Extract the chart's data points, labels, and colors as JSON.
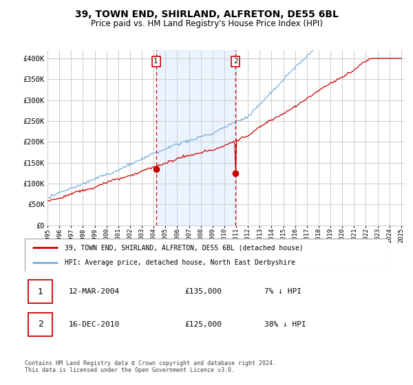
{
  "title": "39, TOWN END, SHIRLAND, ALFRETON, DE55 6BL",
  "subtitle": "Price paid vs. HM Land Registry's House Price Index (HPI)",
  "ylim": [
    0,
    420000
  ],
  "yticks": [
    0,
    50000,
    100000,
    150000,
    200000,
    250000,
    300000,
    350000,
    400000
  ],
  "ytick_labels": [
    "£0",
    "£50K",
    "£100K",
    "£150K",
    "£200K",
    "£250K",
    "£300K",
    "£350K",
    "£400K"
  ],
  "hpi_color": "#7aaedc",
  "price_color": "#cc0000",
  "sale1_date_label": "12-MAR-2004",
  "sale1_price": 135000,
  "sale1_price_label": "£135,000",
  "sale1_pct_label": "7% ↓ HPI",
  "sale1_year": 2004.2,
  "sale2_date_label": "16-DEC-2010",
  "sale2_price": 125000,
  "sale2_price_label": "£125,000",
  "sale2_pct_label": "38% ↓ HPI",
  "sale2_year": 2010.96,
  "legend_line1": "39, TOWN END, SHIRLAND, ALFRETON, DE55 6BL (detached house)",
  "legend_line2": "HPI: Average price, detached house, North East Derbyshire",
  "footnote": "Contains HM Land Registry data © Crown copyright and database right 2024.\nThis data is licensed under the Open Government Licence v3.0.",
  "bg_shade_color": "#ddeeff",
  "vline_color": "#cc0000",
  "background_color": "#ffffff",
  "grid_color": "#cccccc"
}
